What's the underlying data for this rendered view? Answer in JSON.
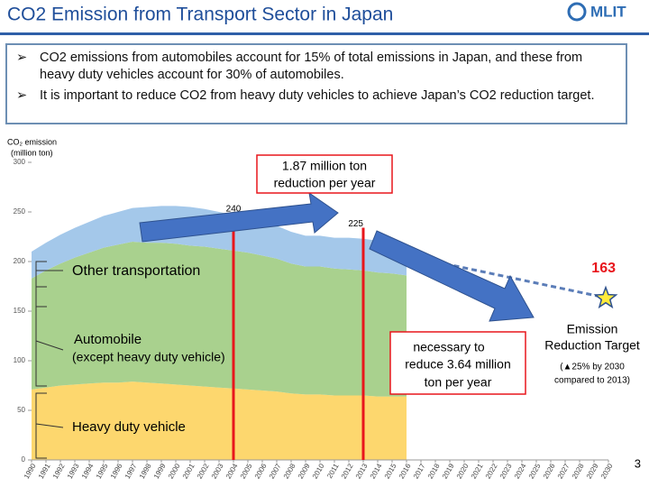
{
  "title": "CO2 Emission from Transport Sector in Japan",
  "logo": "MLIT",
  "bullets": [
    "CO2 emissions from automobiles account for 15% of total emissions in Japan, and these from heavy duty vehicles account for 30% of automobiles.",
    "It is important to reduce CO2 from heavy duty vehicles to achieve Japan’s CO2 reduction target."
  ],
  "page_number": 3,
  "chart_data": {
    "type": "stacked_area",
    "y_label": [
      "CO₂ emission",
      "(million ton)"
    ],
    "x": [
      1990,
      1991,
      1992,
      1993,
      1994,
      1995,
      1996,
      1997,
      1998,
      1999,
      2000,
      2001,
      2002,
      2003,
      2004,
      2005,
      2006,
      2007,
      2008,
      2009,
      2010,
      2011,
      2012,
      2013,
      2014,
      2015,
      2016
    ],
    "series": [
      {
        "name": "Heavy duty vehicle",
        "color": "#fdd76e",
        "values": [
          71,
          73,
          75,
          76,
          77,
          78,
          78,
          79,
          78,
          77,
          76,
          75,
          74,
          73,
          72,
          71,
          70,
          69,
          67,
          66,
          66,
          65,
          65,
          65,
          64,
          64,
          64
        ]
      },
      {
        "name": "Automobile",
        "subname": "(except heavy duty vehicle)",
        "color": "#a9d18e",
        "values": [
          112,
          118,
          123,
          128,
          132,
          136,
          139,
          141,
          141,
          142,
          142,
          141,
          141,
          140,
          139,
          138,
          136,
          134,
          131,
          129,
          129,
          128,
          127,
          126,
          125,
          124,
          122
        ]
      },
      {
        "name": "Other transportation",
        "color": "#a4c8ea",
        "values": [
          27,
          28,
          29,
          30,
          31,
          32,
          33,
          34,
          36,
          37,
          38,
          39,
          38,
          37,
          36,
          35,
          34,
          33,
          32,
          31,
          31,
          31,
          32,
          32,
          32,
          31,
          30
        ]
      }
    ],
    "xlim": [
      1990,
      2030
    ],
    "xticks": [
      1990,
      1991,
      1992,
      1993,
      1994,
      1995,
      1996,
      1997,
      1998,
      1999,
      2000,
      2001,
      2002,
      2003,
      2004,
      2005,
      2006,
      2007,
      2008,
      2009,
      2010,
      2011,
      2012,
      2013,
      2014,
      2015,
      2016,
      2017,
      2018,
      2019,
      2020,
      2021,
      2022,
      2023,
      2024,
      2025,
      2026,
      2027,
      2028,
      2029,
      2030
    ],
    "ylim": [
      0,
      300
    ],
    "yticks": [
      0,
      50,
      100,
      150,
      200,
      250,
      300
    ],
    "reference_lines": [
      {
        "x": 2004,
        "value": 240
      },
      {
        "x": 2013,
        "value": 225
      }
    ],
    "reference_color": "#e8161c",
    "target_line": {
      "x": [
        2015,
        2030
      ],
      "values": [
        209,
        163
      ],
      "color": "#5b7db8"
    },
    "callouts": [
      "1.87 million ton",
      "reduction per year",
      "necessary to",
      "reduce 3.64 million",
      "ton per year"
    ],
    "target_label": [
      "Emission",
      "Reduction Target",
      "(▲25% by 2030",
      "compared to 2013)"
    ]
  }
}
